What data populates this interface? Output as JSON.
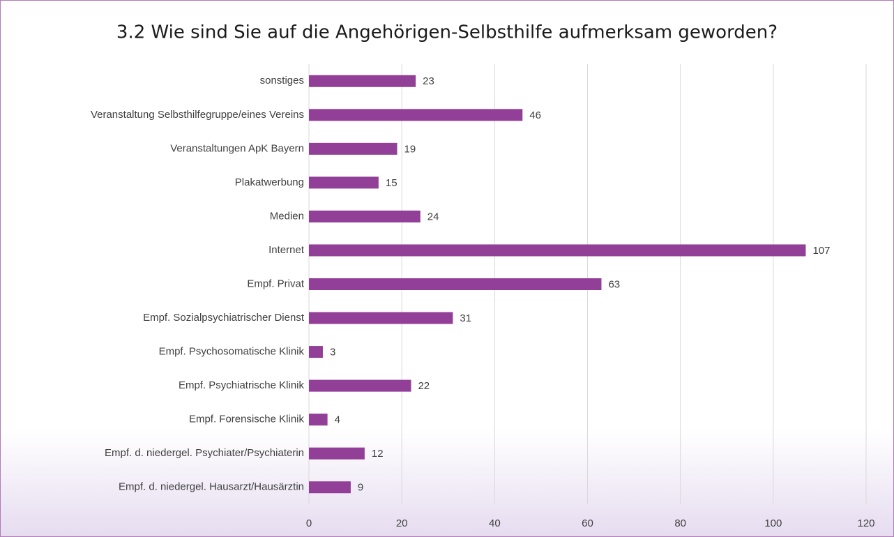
{
  "chart_data": {
    "type": "bar",
    "orientation": "horizontal",
    "title": "3.2 Wie sind Sie auf die Angehörigen-Selbsthilfe aufmerksam geworden?",
    "categories": [
      "sonstiges",
      "Veranstaltung Selbsthilfegruppe/eines Vereins",
      "Veranstaltungen ApK Bayern",
      "Plakatwerbung",
      "Medien",
      "Internet",
      "Empf. Privat",
      "Empf. Sozialpsychiatrischer Dienst",
      "Empf. Psychosomatische Klinik",
      "Empf. Psychiatrische Klinik",
      "Empf. Forensische Klinik",
      "Empf. d. niedergel. Psychiater/Psychiaterin",
      "Empf. d. niedergel. Hausarzt/Hausärztin"
    ],
    "values": [
      23,
      46,
      19,
      15,
      24,
      107,
      63,
      31,
      3,
      22,
      4,
      12,
      9
    ],
    "color": "#923f97",
    "xlim": [
      0,
      120
    ],
    "xticks": [
      0,
      20,
      40,
      60,
      80,
      100,
      120
    ],
    "grid": true
  }
}
